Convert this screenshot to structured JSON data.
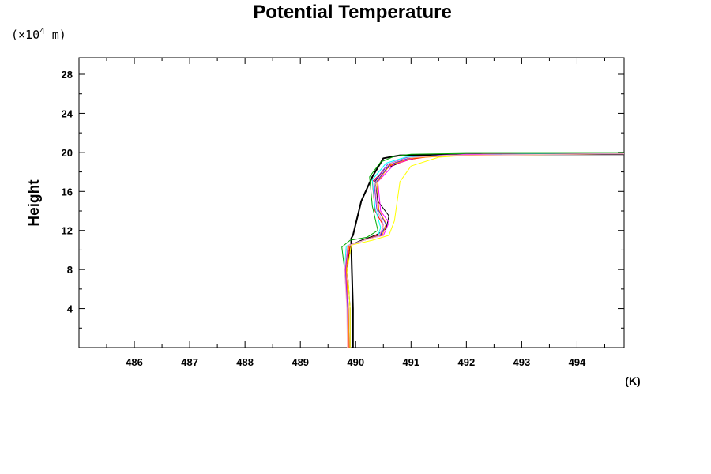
{
  "chart_data": {
    "type": "line",
    "title": "Potential Temperature",
    "ylabel": "Height",
    "y_scale_note_prefix": "(×10",
    "y_scale_note_exp": "4",
    "y_scale_note_suffix": " m)",
    "x_unit": "(K)",
    "xlim": [
      485.0,
      494.85
    ],
    "ylim": [
      0,
      29.7
    ],
    "x_ticks": [
      486,
      487,
      488,
      489,
      490,
      491,
      492,
      493,
      494
    ],
    "y_ticks": [
      4,
      8,
      12,
      16,
      20,
      24,
      28
    ],
    "x_tick_labels": [
      "486",
      "487",
      "488",
      "489",
      "490",
      "491",
      "492",
      "493",
      "494"
    ],
    "y_tick_labels": [
      "4",
      "8",
      "12",
      "16",
      "20",
      "24",
      "28"
    ],
    "grid": false,
    "legend": "none",
    "series": [
      {
        "color": "#000000",
        "width": 2,
        "x": [
          489.95,
          489.95,
          489.93,
          489.92,
          489.92,
          489.95,
          490.1,
          490.3,
          490.5,
          490.8,
          491.5,
          492.5,
          494.85
        ],
        "y": [
          0,
          4,
          8,
          10.5,
          11.2,
          11.5,
          15,
          17.5,
          19.4,
          19.7,
          19.75,
          19.8,
          19.8
        ]
      },
      {
        "color": "#000000",
        "width": 1,
        "x": [
          489.9,
          489.9,
          489.85,
          489.9,
          490.1,
          490.35,
          490.45,
          490.55,
          490.6,
          490.4,
          490.35,
          490.5,
          490.9,
          491.3,
          492.5,
          494.85
        ],
        "y": [
          0,
          4,
          8,
          10.5,
          11.0,
          11.5,
          11.8,
          12.2,
          13.5,
          15.0,
          17.0,
          18.2,
          19.2,
          19.6,
          19.8,
          19.85
        ]
      },
      {
        "color": "#ff0000",
        "width": 1,
        "x": [
          489.88,
          489.87,
          489.83,
          489.9,
          490.2,
          490.45,
          490.5,
          490.35,
          490.3,
          490.6,
          491.0,
          491.5,
          492.5,
          494.85
        ],
        "y": [
          0,
          4,
          8,
          10.5,
          11.1,
          11.6,
          12.5,
          14.0,
          17.0,
          18.6,
          19.3,
          19.7,
          19.8,
          19.85
        ]
      },
      {
        "color": "#00aa00",
        "width": 1,
        "x": [
          489.86,
          489.85,
          489.8,
          489.75,
          489.9,
          490.2,
          490.4,
          490.3,
          490.25,
          490.45,
          490.7,
          491.0,
          492.0,
          494.85
        ],
        "y": [
          0,
          4,
          8,
          10.3,
          11.0,
          11.3,
          12.0,
          14.5,
          17.5,
          19.0,
          19.6,
          19.8,
          19.9,
          19.9
        ]
      },
      {
        "color": "#0000ff",
        "width": 1,
        "x": [
          489.87,
          489.86,
          489.82,
          489.85,
          490.15,
          490.45,
          490.55,
          490.4,
          490.35,
          490.6,
          490.95,
          491.5,
          492.5,
          494.85
        ],
        "y": [
          0,
          4,
          8,
          10.4,
          11.0,
          11.5,
          12.6,
          14.2,
          16.8,
          18.7,
          19.4,
          19.7,
          19.8,
          19.85
        ]
      },
      {
        "color": "#ffff00",
        "width": 1,
        "x": [
          489.9,
          489.9,
          489.85,
          489.92,
          490.3,
          490.6,
          490.7,
          490.75,
          490.8,
          491.0,
          491.5,
          492.3,
          494.85
        ],
        "y": [
          0,
          4,
          8,
          10.5,
          11.0,
          11.5,
          13.0,
          15.0,
          17.0,
          18.6,
          19.5,
          19.8,
          19.85
        ]
      },
      {
        "color": "#ff00ff",
        "width": 1,
        "x": [
          489.87,
          489.86,
          489.82,
          489.88,
          490.2,
          490.5,
          490.6,
          490.45,
          490.4,
          490.7,
          491.1,
          492.0,
          494.85
        ],
        "y": [
          0,
          4,
          8,
          10.5,
          11.1,
          11.5,
          12.8,
          14.0,
          17.0,
          18.8,
          19.5,
          19.8,
          19.85
        ]
      },
      {
        "color": "#00ffff",
        "width": 1,
        "x": [
          489.86,
          489.85,
          489.8,
          489.83,
          490.15,
          490.4,
          490.45,
          490.35,
          490.3,
          490.55,
          490.9,
          491.6,
          493.0,
          494.85
        ],
        "y": [
          0,
          4,
          8,
          10.4,
          11.0,
          11.4,
          12.3,
          14.3,
          17.2,
          18.9,
          19.5,
          19.7,
          19.8,
          19.85
        ]
      },
      {
        "color": "#ff8c00",
        "width": 1,
        "x": [
          489.88,
          489.87,
          489.83,
          489.88,
          490.2,
          490.48,
          490.55,
          490.42,
          490.38,
          490.62,
          491.0,
          491.8,
          494.85
        ],
        "y": [
          0,
          4,
          8,
          10.5,
          11.1,
          11.5,
          12.7,
          14.1,
          16.9,
          18.7,
          19.4,
          19.7,
          19.85
        ]
      },
      {
        "color": "#8a2be2",
        "width": 1,
        "x": [
          489.86,
          489.85,
          489.81,
          489.86,
          490.18,
          490.44,
          490.5,
          490.38,
          490.33,
          490.58,
          490.92,
          491.6,
          494.85
        ],
        "y": [
          0,
          4,
          8,
          10.45,
          11.05,
          11.45,
          12.6,
          14.2,
          17.0,
          18.8,
          19.45,
          19.72,
          19.85
        ]
      },
      {
        "color": "#ffb6c1",
        "width": 1,
        "x": [
          489.85,
          489.84,
          489.8,
          489.85,
          490.15,
          490.42,
          490.5,
          490.4,
          490.35,
          490.6,
          490.95,
          491.7,
          494.85
        ],
        "y": [
          0,
          4,
          8,
          10.4,
          11.0,
          11.4,
          12.5,
          14.0,
          16.9,
          18.8,
          19.45,
          19.72,
          19.85
        ]
      }
    ]
  }
}
